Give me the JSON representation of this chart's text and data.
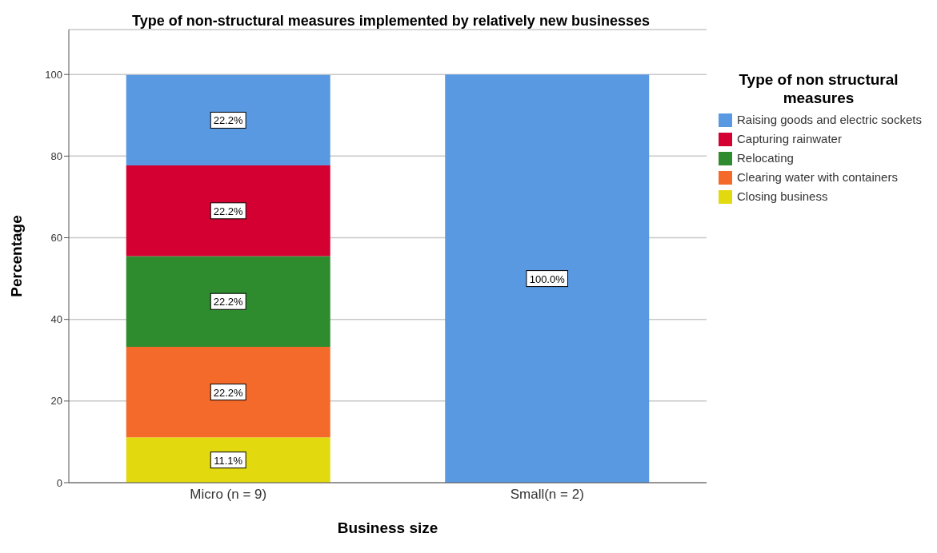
{
  "chart_data": {
    "type": "bar",
    "title": "Type of non-structural measures implemented by relatively new businesses",
    "xlabel": "Business size",
    "ylabel": "Percentage",
    "legend_title": "Type of non structural measures",
    "categories": [
      "Micro (n = 9)",
      "Small(n = 2)"
    ],
    "stacked": true,
    "ylim": [
      0,
      111
    ],
    "yticks": [
      0,
      20,
      40,
      60,
      80,
      100
    ],
    "grid": "y",
    "legend": "right",
    "series": [
      {
        "name": "Closing business",
        "color": "#e3d90f",
        "values": [
          11.1,
          null
        ],
        "value_labels": [
          "11.1%",
          null
        ]
      },
      {
        "name": "Clearing water with containers",
        "color": "#f36a2a",
        "values": [
          22.2,
          null
        ],
        "value_labels": [
          "22.2%",
          null
        ]
      },
      {
        "name": "Relocating",
        "color": "#2e8b2e",
        "values": [
          22.2,
          null
        ],
        "value_labels": [
          "22.2%",
          null
        ]
      },
      {
        "name": "Capturing rainwater",
        "color": "#d50032",
        "values": [
          22.2,
          null
        ],
        "value_labels": [
          "22.2%",
          null
        ]
      },
      {
        "name": "Raising goods and electric sockets",
        "color": "#5899e2",
        "values": [
          22.2,
          100
        ],
        "value_labels": [
          "22.2%",
          "100.0%"
        ]
      }
    ]
  }
}
